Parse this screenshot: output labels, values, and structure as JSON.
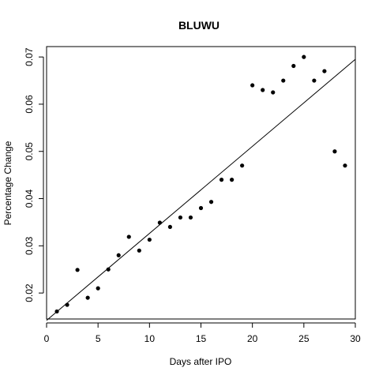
{
  "chart_data": {
    "type": "scatter",
    "title": "BLUWU",
    "xlabel": "Days after IPO",
    "ylabel": "Percentage Change",
    "xlim": [
      0,
      30
    ],
    "ylim": [
      0.0145,
      0.0722
    ],
    "x_ticks": [
      0,
      5,
      10,
      15,
      20,
      25,
      30
    ],
    "y_ticks": [
      0.02,
      0.03,
      0.04,
      0.05,
      0.06,
      0.07
    ],
    "x_tick_labels": [
      "0",
      "5",
      "10",
      "15",
      "20",
      "25",
      "30"
    ],
    "y_tick_labels": [
      "0.02",
      "0.03",
      "0.04",
      "0.05",
      "0.06",
      "0.07"
    ],
    "grid": false,
    "legend": "none",
    "points": [
      {
        "x": 1,
        "y": 0.0161
      },
      {
        "x": 2,
        "y": 0.0175
      },
      {
        "x": 3,
        "y": 0.0249
      },
      {
        "x": 4,
        "y": 0.019
      },
      {
        "x": 5,
        "y": 0.021
      },
      {
        "x": 6,
        "y": 0.025
      },
      {
        "x": 7,
        "y": 0.028
      },
      {
        "x": 8,
        "y": 0.0319
      },
      {
        "x": 9,
        "y": 0.029
      },
      {
        "x": 10,
        "y": 0.0313
      },
      {
        "x": 11,
        "y": 0.0349
      },
      {
        "x": 12,
        "y": 0.034
      },
      {
        "x": 13,
        "y": 0.036
      },
      {
        "x": 14,
        "y": 0.036
      },
      {
        "x": 15,
        "y": 0.038
      },
      {
        "x": 16,
        "y": 0.0393
      },
      {
        "x": 17,
        "y": 0.044
      },
      {
        "x": 18,
        "y": 0.044
      },
      {
        "x": 19,
        "y": 0.047
      },
      {
        "x": 20,
        "y": 0.064
      },
      {
        "x": 21,
        "y": 0.063
      },
      {
        "x": 22,
        "y": 0.0625
      },
      {
        "x": 23,
        "y": 0.065
      },
      {
        "x": 24,
        "y": 0.0681
      },
      {
        "x": 25,
        "y": 0.07
      },
      {
        "x": 26,
        "y": 0.065
      },
      {
        "x": 27,
        "y": 0.067
      },
      {
        "x": 28,
        "y": 0.05
      },
      {
        "x": 29,
        "y": 0.047
      }
    ],
    "fit_line": {
      "x": [
        0,
        30
      ],
      "y": [
        0.0142,
        0.0695
      ]
    }
  }
}
